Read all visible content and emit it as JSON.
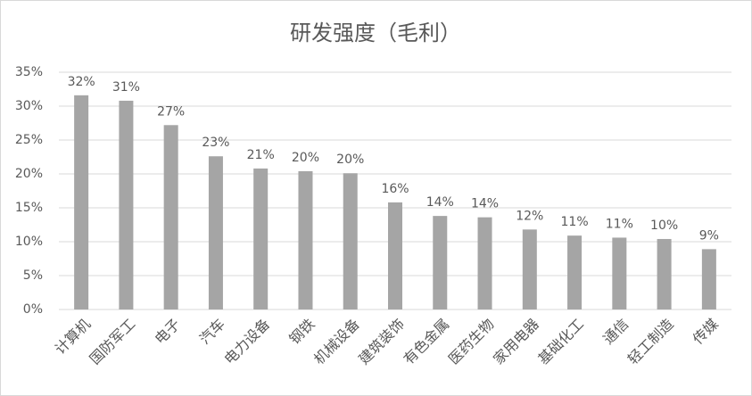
{
  "chart_data": {
    "type": "bar",
    "title": "研发强度（毛利）",
    "categories": [
      "计算机",
      "国防军工",
      "电子",
      "汽车",
      "电力设备",
      "钢铁",
      "机械设备",
      "建筑装饰",
      "有色金属",
      "医药生物",
      "家用电器",
      "基础化工",
      "通信",
      "轻工制造",
      "传媒"
    ],
    "values": [
      31.6,
      30.8,
      27.2,
      22.6,
      20.8,
      20.4,
      20.1,
      15.8,
      13.8,
      13.6,
      11.8,
      10.9,
      10.6,
      10.4,
      8.9
    ],
    "value_labels": [
      "32%",
      "31%",
      "27%",
      "23%",
      "21%",
      "20%",
      "20%",
      "16%",
      "14%",
      "14%",
      "12%",
      "11%",
      "11%",
      "10%",
      "9%"
    ],
    "color": "#a5a5a5",
    "ylim": [
      0,
      35
    ],
    "yticks": [
      {
        "value": 0,
        "label": "0%"
      },
      {
        "value": 5,
        "label": "5%"
      },
      {
        "value": 10,
        "label": "10%"
      },
      {
        "value": 15,
        "label": "15%"
      },
      {
        "value": 20,
        "label": "20%"
      },
      {
        "value": 25,
        "label": "25%"
      },
      {
        "value": 30,
        "label": "30%"
      },
      {
        "value": 35,
        "label": "35%"
      }
    ],
    "grid": true
  }
}
